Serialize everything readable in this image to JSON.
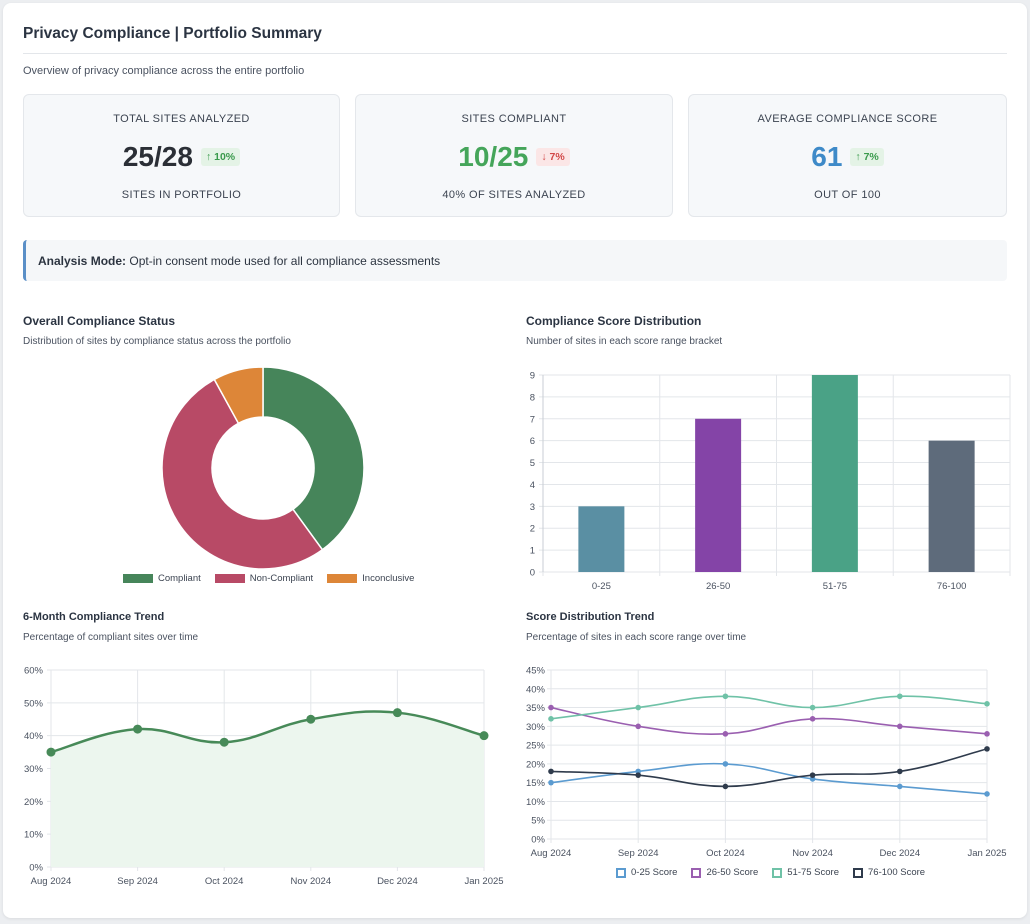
{
  "page": {
    "title": "Privacy Compliance | Portfolio Summary",
    "subtitle": "Overview of privacy compliance across the entire portfolio"
  },
  "kpis": [
    {
      "label": "TOTAL SITES ANALYZED",
      "value": "25/28",
      "badge": "↑ 10%",
      "trend": "up",
      "footer": "SITES IN PORTFOLIO",
      "color": "#2b2f36"
    },
    {
      "label": "SITES COMPLIANT",
      "value": "10/25",
      "badge": "↓ 7%",
      "trend": "down",
      "footer": "40% OF SITES ANALYZED",
      "color": "#45a55a"
    },
    {
      "label": "AVERAGE COMPLIANCE SCORE",
      "value": "61",
      "badge": "↑ 7%",
      "trend": "up",
      "footer": "OUT OF 100",
      "color": "#3e8ac8"
    }
  ],
  "notice": {
    "label": "Analysis Mode:",
    "text": " Opt-in consent mode used for all compliance assessments"
  },
  "sections": {
    "status": {
      "title": "Overall Compliance Status",
      "subtitle": "Distribution of sites by compliance status across the portfolio"
    },
    "distribution": {
      "title": "Compliance Score Distribution",
      "subtitle": "Number of sites in each score range bracket"
    },
    "trend": {
      "title": "6-Month Compliance Trend",
      "subtitle": "Percentage of compliant sites over time"
    },
    "score_trend": {
      "title": "Score Distribution Trend",
      "subtitle": "Percentage of sites in each score range over time"
    }
  },
  "chart_data": [
    {
      "id": "status",
      "type": "pie",
      "title": "Overall Compliance Status",
      "labels": [
        "Compliant",
        "Non-Compliant",
        "Inconclusive"
      ],
      "values": [
        10,
        13,
        2
      ],
      "colors": [
        "#46855a",
        "#b84a66",
        "#dd8638"
      ]
    },
    {
      "id": "distribution",
      "type": "bar",
      "title": "Compliance Score Distribution",
      "categories": [
        "0-25",
        "26-50",
        "51-75",
        "76-100"
      ],
      "values": [
        3,
        7,
        9,
        6
      ],
      "colors": [
        "#5a8fa3",
        "#8444a7",
        "#4aa286",
        "#5e6b7b"
      ],
      "ylim": [
        0,
        9
      ],
      "yticks": [
        "0",
        "1",
        "2",
        "3",
        "4",
        "5",
        "6",
        "7",
        "8",
        "9"
      ]
    },
    {
      "id": "trend",
      "type": "area",
      "title": "6-Month Compliance Trend",
      "x": [
        "Aug 2024",
        "Sep 2024",
        "Oct 2024",
        "Nov 2024",
        "Dec 2024",
        "Jan 2025"
      ],
      "values": [
        35,
        42,
        38,
        45,
        47,
        40
      ],
      "color": "#478a58",
      "fill": "#ecf6ee",
      "ylim": [
        0,
        60
      ],
      "yticks": [
        "0%",
        "10%",
        "20%",
        "30%",
        "40%",
        "50%",
        "60%"
      ]
    },
    {
      "id": "score_trend",
      "type": "line",
      "title": "Score Distribution Trend",
      "x": [
        "Aug 2024",
        "Sep 2024",
        "Oct 2024",
        "Nov 2024",
        "Dec 2024",
        "Jan 2025"
      ],
      "series": [
        {
          "name": "0-25 Score",
          "values": [
            15,
            18,
            20,
            16,
            14,
            12
          ],
          "color": "#5b9bd0"
        },
        {
          "name": "26-50 Score",
          "values": [
            35,
            30,
            28,
            32,
            30,
            28
          ],
          "color": "#9a5fb0"
        },
        {
          "name": "51-75 Score",
          "values": [
            32,
            35,
            38,
            35,
            38,
            36
          ],
          "color": "#6fc2a7"
        },
        {
          "name": "76-100 Score",
          "values": [
            18,
            17,
            14,
            17,
            18,
            24
          ],
          "color": "#2f3b4c"
        }
      ],
      "ylim": [
        0,
        45
      ],
      "yticks": [
        "0%",
        "5%",
        "10%",
        "15%",
        "20%",
        "25%",
        "30%",
        "35%",
        "40%",
        "45%"
      ]
    }
  ]
}
